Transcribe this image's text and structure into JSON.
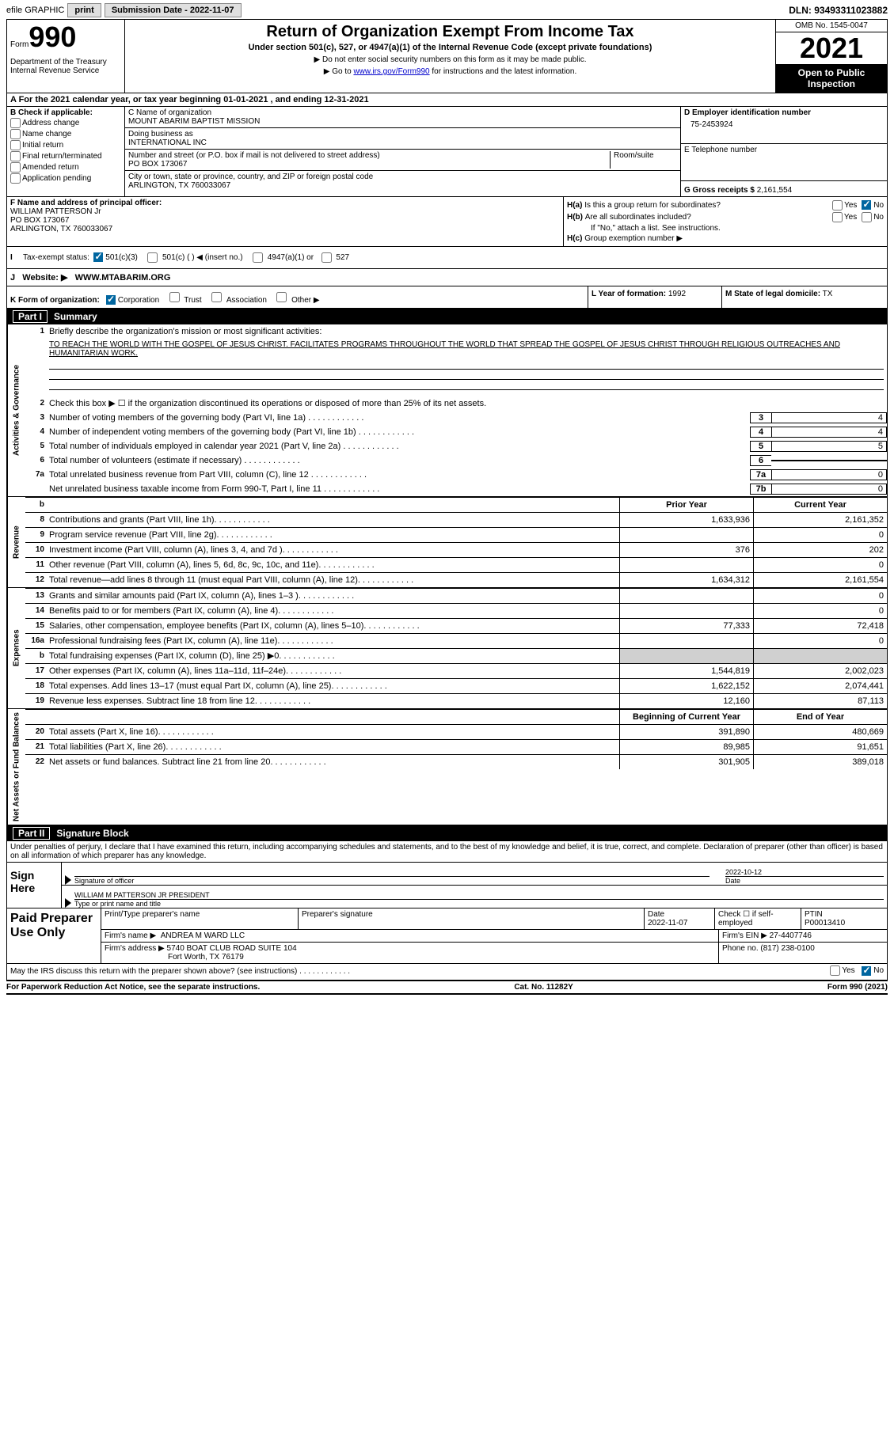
{
  "top_bar": {
    "efile_label": "efile GRAPHIC",
    "print_btn": "print",
    "submission_label": "Submission Date - 2022-11-07",
    "dln_label": "DLN: 93493311023882"
  },
  "header": {
    "form_label": "Form",
    "form_number": "990",
    "dept": "Department of the Treasury Internal Revenue Service",
    "title": "Return of Organization Exempt From Income Tax",
    "subtitle": "Under section 501(c), 527, or 4947(a)(1) of the Internal Revenue Code (except private foundations)",
    "note1": "▶ Do not enter social security numbers on this form as it may be made public.",
    "note2_pre": "▶ Go to ",
    "note2_link": "www.irs.gov/Form990",
    "note2_post": " for instructions and the latest information.",
    "omb": "OMB No. 1545-0047",
    "year": "2021",
    "open_public": "Open to Public Inspection"
  },
  "calendar_year": "A For the 2021 calendar year, or tax year beginning 01-01-2021   , and ending 12-31-2021",
  "section_b": {
    "label": "B Check if applicable:",
    "items": [
      "Address change",
      "Name change",
      "Initial return",
      "Final return/terminated",
      "Amended return",
      "Application pending"
    ]
  },
  "org": {
    "name_label": "C Name of organization",
    "name": "MOUNT ABARIM BAPTIST MISSION",
    "dba_label": "Doing business as",
    "dba": "INTERNATIONAL INC",
    "street_label": "Number and street (or P.O. box if mail is not delivered to street address)",
    "street": "PO BOX 173067",
    "room_label": "Room/suite",
    "city_label": "City or town, state or province, country, and ZIP or foreign postal code",
    "city": "ARLINGTON, TX  760033067"
  },
  "ein_label": "D Employer identification number",
  "ein": "75-2453924",
  "phone_label": "E Telephone number",
  "gross_label": "G Gross receipts $",
  "gross": "2,161,554",
  "officer": {
    "label": "F Name and address of principal officer:",
    "name": "WILLIAM PATTERSON Jr",
    "addr1": "PO BOX 173067",
    "addr2": "ARLINGTON, TX  760033067"
  },
  "ha_label": "Is this a group return for subordinates?",
  "hb_label": "Are all subordinates included?",
  "hb_note": "If \"No,\" attach a list. See instructions.",
  "hc_label": "Group exemption number ▶",
  "tax_exempt": {
    "label": "Tax-exempt status:",
    "opt1": "501(c)(3)",
    "opt2": "501(c) (   ) ◀ (insert no.)",
    "opt3": "4947(a)(1) or",
    "opt4": "527"
  },
  "website_label": "Website: ▶",
  "website": "WWW.MTABARIM.ORG",
  "k_label": "K Form of organization:",
  "k_opts": [
    "Corporation",
    "Trust",
    "Association",
    "Other ▶"
  ],
  "l_label": "L Year of formation:",
  "l_val": "1992",
  "m_label": "M State of legal domicile:",
  "m_val": "TX",
  "part1_title": "Summary",
  "mission": {
    "prompt": "Briefly describe the organization's mission or most significant activities:",
    "text": "TO REACH THE WORLD WITH THE GOSPEL OF JESUS CHRIST. FACILITATES PROGRAMS THROUGHOUT THE WORLD THAT SPREAD THE GOSPEL OF JESUS CHRIST THROUGH RELIGIOUS OUTREACHES AND HUMANITARIAN WORK."
  },
  "lines": {
    "l2": "Check this box ▶ ☐ if the organization discontinued its operations or disposed of more than 25% of its net assets.",
    "l3": "Number of voting members of the governing body (Part VI, line 1a)",
    "l3v": "4",
    "l4": "Number of independent voting members of the governing body (Part VI, line 1b)",
    "l4v": "4",
    "l5": "Total number of individuals employed in calendar year 2021 (Part V, line 2a)",
    "l5v": "5",
    "l6": "Total number of volunteers (estimate if necessary)",
    "l6v": "",
    "l7a": "Total unrelated business revenue from Part VIII, column (C), line 12",
    "l7av": "0",
    "l7b": "Net unrelated business taxable income from Form 990-T, Part I, line 11",
    "l7bv": "0"
  },
  "cols": {
    "prior": "Prior Year",
    "current": "Current Year",
    "beg": "Beginning of Current Year",
    "end": "End of Year"
  },
  "revenue": [
    {
      "n": "8",
      "t": "Contributions and grants (Part VIII, line 1h)",
      "p": "1,633,936",
      "c": "2,161,352"
    },
    {
      "n": "9",
      "t": "Program service revenue (Part VIII, line 2g)",
      "p": "",
      "c": "0"
    },
    {
      "n": "10",
      "t": "Investment income (Part VIII, column (A), lines 3, 4, and 7d )",
      "p": "376",
      "c": "202"
    },
    {
      "n": "11",
      "t": "Other revenue (Part VIII, column (A), lines 5, 6d, 8c, 9c, 10c, and 11e)",
      "p": "",
      "c": "0"
    },
    {
      "n": "12",
      "t": "Total revenue—add lines 8 through 11 (must equal Part VIII, column (A), line 12)",
      "p": "1,634,312",
      "c": "2,161,554"
    }
  ],
  "expenses": [
    {
      "n": "13",
      "t": "Grants and similar amounts paid (Part IX, column (A), lines 1–3 )",
      "p": "",
      "c": "0"
    },
    {
      "n": "14",
      "t": "Benefits paid to or for members (Part IX, column (A), line 4)",
      "p": "",
      "c": "0"
    },
    {
      "n": "15",
      "t": "Salaries, other compensation, employee benefits (Part IX, column (A), lines 5–10)",
      "p": "77,333",
      "c": "72,418"
    },
    {
      "n": "16a",
      "t": "Professional fundraising fees (Part IX, column (A), line 11e)",
      "p": "",
      "c": "0"
    },
    {
      "n": "b",
      "t": "Total fundraising expenses (Part IX, column (D), line 25) ▶0",
      "p": "gray",
      "c": "gray"
    },
    {
      "n": "17",
      "t": "Other expenses (Part IX, column (A), lines 11a–11d, 11f–24e)",
      "p": "1,544,819",
      "c": "2,002,023"
    },
    {
      "n": "18",
      "t": "Total expenses. Add lines 13–17 (must equal Part IX, column (A), line 25)",
      "p": "1,622,152",
      "c": "2,074,441"
    },
    {
      "n": "19",
      "t": "Revenue less expenses. Subtract line 18 from line 12",
      "p": "12,160",
      "c": "87,113"
    }
  ],
  "netassets": [
    {
      "n": "20",
      "t": "Total assets (Part X, line 16)",
      "p": "391,890",
      "c": "480,669"
    },
    {
      "n": "21",
      "t": "Total liabilities (Part X, line 26)",
      "p": "89,985",
      "c": "91,651"
    },
    {
      "n": "22",
      "t": "Net assets or fund balances. Subtract line 21 from line 20",
      "p": "301,905",
      "c": "389,018"
    }
  ],
  "part2_title": "Signature Block",
  "sig_declaration": "Under penalties of perjury, I declare that I have examined this return, including accompanying schedules and statements, and to the best of my knowledge and belief, it is true, correct, and complete. Declaration of preparer (other than officer) is based on all information of which preparer has any knowledge.",
  "sign_here": "Sign Here",
  "sig_officer_label": "Signature of officer",
  "sig_date": "2022-10-12",
  "sig_date_label": "Date",
  "sig_name": "WILLIAM M PATTERSON JR  PRESIDENT",
  "sig_name_label": "Type or print name and title",
  "paid_label": "Paid Preparer Use Only",
  "prep": {
    "name_label": "Print/Type preparer's name",
    "sig_label": "Preparer's signature",
    "date_label": "Date",
    "date": "2022-11-07",
    "check_label": "Check ☐ if self-employed",
    "ptin_label": "PTIN",
    "ptin": "P00013410",
    "firm_name_label": "Firm's name    ▶",
    "firm_name": "ANDREA M WARD LLC",
    "firm_ein_label": "Firm's EIN ▶",
    "firm_ein": "27-4407746",
    "firm_addr_label": "Firm's address ▶",
    "firm_addr1": "5740 BOAT CLUB ROAD SUITE 104",
    "firm_addr2": "Fort Worth, TX  76179",
    "phone_label": "Phone no.",
    "phone": "(817) 238-0100"
  },
  "discuss": "May the IRS discuss this return with the preparer shown above? (see instructions)",
  "footer": {
    "pra": "For Paperwork Reduction Act Notice, see the separate instructions.",
    "cat": "Cat. No. 11282Y",
    "form": "Form 990 (2021)"
  }
}
